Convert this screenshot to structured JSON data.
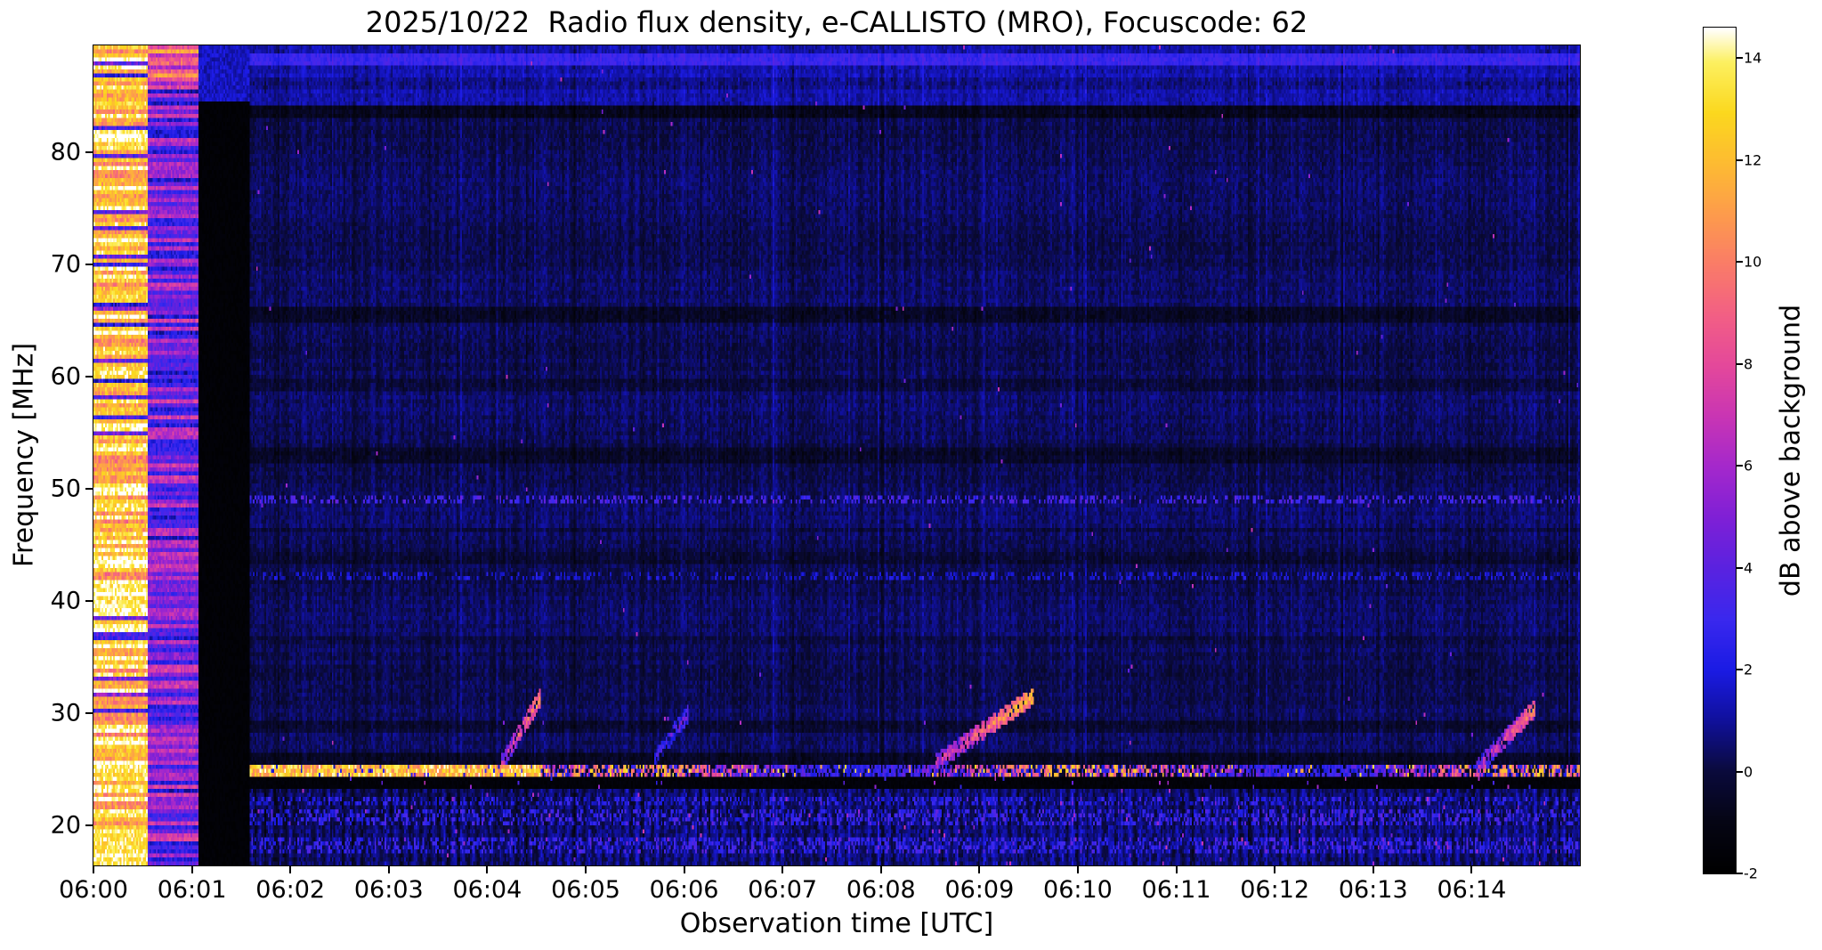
{
  "chart_data": {
    "type": "heatmap",
    "title": "2025/10/22  Radio flux density, e-CALLISTO (MRO), Focuscode: 62",
    "xlabel": "Observation time [UTC]",
    "ylabel": "Frequency [MHz]",
    "x_range_minutes": [
      0,
      15.1
    ],
    "y_range_mhz": [
      16.4,
      89.5
    ],
    "x_ticks": {
      "labels": [
        "06:00",
        "06:01",
        "06:02",
        "06:03",
        "06:04",
        "06:05",
        "06:06",
        "06:07",
        "06:08",
        "06:09",
        "06:10",
        "06:11",
        "06:12",
        "06:13",
        "06:14"
      ],
      "minutes": [
        0,
        1,
        2,
        3,
        4,
        5,
        6,
        7,
        8,
        9,
        10,
        11,
        12,
        13,
        14
      ]
    },
    "y_ticks_mhz": [
      20,
      30,
      40,
      50,
      60,
      70,
      80
    ],
    "colorbar": {
      "label": "dB above background",
      "vmin": -2,
      "vmax": 14.6,
      "ticks": [
        -2,
        0,
        2,
        4,
        6,
        8,
        10,
        12,
        14
      ],
      "stops": [
        [
          0.0,
          "#000000"
        ],
        [
          0.06,
          "#050514"
        ],
        [
          0.12,
          "#0a0a3c"
        ],
        [
          0.18,
          "#10109b"
        ],
        [
          0.24,
          "#1b1be4"
        ],
        [
          0.3,
          "#3a28ee"
        ],
        [
          0.36,
          "#5a22e0"
        ],
        [
          0.42,
          "#7f20d6"
        ],
        [
          0.48,
          "#a428cc"
        ],
        [
          0.54,
          "#c935b4"
        ],
        [
          0.6,
          "#e4489b"
        ],
        [
          0.66,
          "#f25f85"
        ],
        [
          0.72,
          "#fa7c68"
        ],
        [
          0.78,
          "#fd9c4c"
        ],
        [
          0.84,
          "#fdbb32"
        ],
        [
          0.9,
          "#fbd81e"
        ],
        [
          0.96,
          "#fcf060"
        ],
        [
          1.0,
          "#ffffff"
        ]
      ]
    },
    "features": {
      "background_db": -0.2,
      "calibration_bands": [
        {
          "start_min": 0.0,
          "end_min": 0.55,
          "base_db": 12.5,
          "row_variation_db": 5,
          "description": "bright calibration band (yellow/white rows)"
        },
        {
          "start_min": 0.55,
          "end_min": 1.07,
          "base_db": 4.5,
          "row_variation_db": 6,
          "description": "mixed blue/magenta band"
        },
        {
          "start_min": 1.07,
          "end_min": 1.58,
          "base_db": -1.9,
          "row_variation_db": 0.4,
          "description": "black data gap"
        }
      ],
      "top_band": {
        "freq_lo": 84.0,
        "extra_db": 0.6,
        "line_mhz": 88.3
      },
      "rfi_line": {
        "freq_mhz": 24.9,
        "width_mhz": 0.9,
        "bright_until_min": 4.55,
        "bright_db": 11.5,
        "dotted_db": 6
      },
      "dark_band": {
        "freq_lo": 23.3,
        "freq_hi": 24.45,
        "db": -1.8
      },
      "dark_rows": [
        [
          85.6,
          86.6,
          -0.5
        ],
        [
          83.2,
          84.1,
          -1.0
        ],
        [
          64.7,
          66.3,
          -0.85
        ],
        [
          58.8,
          59.6,
          -0.45
        ],
        [
          52.4,
          53.7,
          -0.6
        ],
        [
          46.0,
          46.6,
          -0.35
        ],
        [
          43.4,
          44.3,
          -0.4
        ],
        [
          36.2,
          36.9,
          -0.35
        ],
        [
          28.1,
          29.3,
          -0.7
        ],
        [
          25.5,
          26.5,
          -0.9
        ]
      ],
      "dotted_rows": [
        [
          48.5,
          49.4,
          2.3
        ],
        [
          41.7,
          42.45,
          1.0
        ],
        [
          21.8,
          22.5,
          1.2
        ],
        [
          20.1,
          21.3,
          1.7
        ],
        [
          17.3,
          19.0,
          1.5
        ]
      ],
      "type_iii_bursts": [
        {
          "start_min": 4.15,
          "end_min": 4.55,
          "freq_start": 25.5,
          "freq_end": 31.5,
          "peak_db": 11
        },
        {
          "start_min": 5.7,
          "end_min": 6.05,
          "freq_start": 26.0,
          "freq_end": 30.0,
          "peak_db": 5
        },
        {
          "start_min": 8.55,
          "end_min": 9.55,
          "freq_start": 25.5,
          "freq_end": 31.5,
          "peak_db": 12
        },
        {
          "start_min": 14.05,
          "end_min": 14.65,
          "freq_start": 25.0,
          "freq_end": 30.5,
          "peak_db": 10
        }
      ]
    }
  }
}
